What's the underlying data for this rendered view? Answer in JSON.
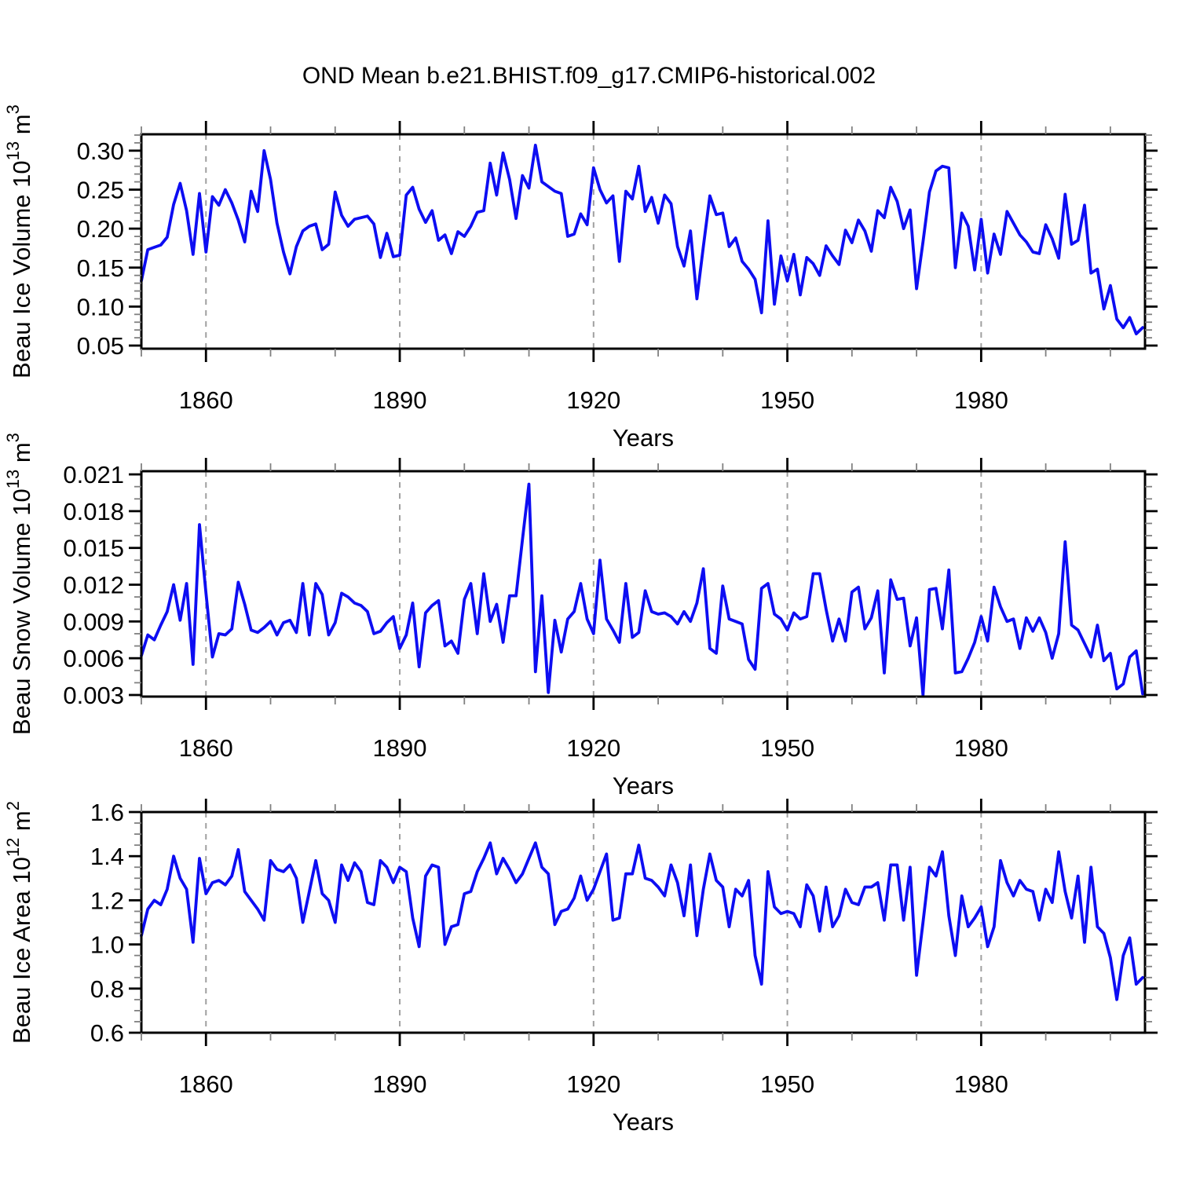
{
  "title": "OND Mean b.e21.BHIST.f09_g17.CMIP6-historical.002",
  "colors": {
    "line": "#0d0df2",
    "axis": "#000000",
    "major_tick": "#000000",
    "minor_tick": "#808080",
    "gridline": "#a0a0a0",
    "background": "#ffffff"
  },
  "x_axis": {
    "label": "Years",
    "start_year": 1850,
    "end_year": 2005,
    "major_ticks": [
      1860,
      1890,
      1920,
      1950,
      1980
    ],
    "minor_step": 10
  },
  "chart_data": [
    {
      "type": "line",
      "name": "beau-ice-volume",
      "ylabel": "Beau Ice Volume 10^13 m^3",
      "ylabel_parts": [
        {
          "text": "Beau Ice Volume 10",
          "sup": false
        },
        {
          "text": "13",
          "sup": true
        },
        {
          "text": " m",
          "sup": false
        },
        {
          "text": "3",
          "sup": true
        }
      ],
      "xlabel": "Years",
      "ylim": [
        0.046,
        0.321
      ],
      "yticks": [
        0.05,
        0.1,
        0.15,
        0.2,
        0.25,
        0.3
      ],
      "ytick_labels": [
        "0.05",
        "0.10",
        "0.15",
        "0.20",
        "0.25",
        "0.30"
      ],
      "y_minor_step": 0.01,
      "x_start": 1850,
      "values": [
        0.133,
        0.173,
        0.176,
        0.179,
        0.189,
        0.231,
        0.258,
        0.223,
        0.167,
        0.245,
        0.17,
        0.241,
        0.23,
        0.25,
        0.233,
        0.211,
        0.183,
        0.248,
        0.222,
        0.3,
        0.263,
        0.207,
        0.17,
        0.142,
        0.177,
        0.197,
        0.203,
        0.206,
        0.173,
        0.18,
        0.247,
        0.217,
        0.203,
        0.212,
        0.214,
        0.216,
        0.206,
        0.163,
        0.194,
        0.164,
        0.166,
        0.243,
        0.253,
        0.225,
        0.208,
        0.223,
        0.185,
        0.192,
        0.168,
        0.196,
        0.19,
        0.203,
        0.221,
        0.223,
        0.284,
        0.243,
        0.297,
        0.263,
        0.213,
        0.268,
        0.252,
        0.307,
        0.26,
        0.254,
        0.248,
        0.245,
        0.19,
        0.193,
        0.219,
        0.205,
        0.278,
        0.25,
        0.233,
        0.242,
        0.158,
        0.248,
        0.238,
        0.28,
        0.222,
        0.24,
        0.207,
        0.243,
        0.232,
        0.177,
        0.152,
        0.197,
        0.11,
        0.177,
        0.242,
        0.218,
        0.22,
        0.177,
        0.188,
        0.158,
        0.148,
        0.135,
        0.092,
        0.21,
        0.103,
        0.165,
        0.133,
        0.167,
        0.115,
        0.163,
        0.155,
        0.14,
        0.178,
        0.165,
        0.154,
        0.198,
        0.182,
        0.211,
        0.197,
        0.171,
        0.223,
        0.214,
        0.253,
        0.235,
        0.2,
        0.224,
        0.123,
        0.183,
        0.247,
        0.274,
        0.28,
        0.278,
        0.15,
        0.22,
        0.203,
        0.147,
        0.212,
        0.143,
        0.193,
        0.167,
        0.222,
        0.207,
        0.192,
        0.183,
        0.17,
        0.168,
        0.205,
        0.187,
        0.162,
        0.244,
        0.18,
        0.185,
        0.23,
        0.143,
        0.148,
        0.097,
        0.127,
        0.084,
        0.073,
        0.086,
        0.065,
        0.073
      ]
    },
    {
      "type": "line",
      "name": "beau-snow-volume",
      "ylabel": "Beau Snow Volume 10^13 m^3",
      "ylabel_parts": [
        {
          "text": "Beau Snow Volume 10",
          "sup": false
        },
        {
          "text": "13",
          "sup": true
        },
        {
          "text": " m",
          "sup": false
        },
        {
          "text": "3",
          "sup": true
        }
      ],
      "xlabel": "Years",
      "ylim": [
        0.00287,
        0.02126
      ],
      "yticks": [
        0.003,
        0.006,
        0.009,
        0.012,
        0.015,
        0.018,
        0.021
      ],
      "ytick_labels": [
        "0.003",
        "0.006",
        "0.009",
        "0.012",
        "0.015",
        "0.018",
        "0.021"
      ],
      "y_minor_step": 0.001,
      "x_start": 1850,
      "values": [
        0.0062,
        0.0079,
        0.0075,
        0.0087,
        0.0098,
        0.012,
        0.0091,
        0.0121,
        0.0055,
        0.0169,
        0.0113,
        0.0061,
        0.008,
        0.0079,
        0.0084,
        0.0122,
        0.0104,
        0.0083,
        0.0081,
        0.0085,
        0.009,
        0.0079,
        0.0089,
        0.0091,
        0.0081,
        0.0121,
        0.0079,
        0.0121,
        0.0112,
        0.0079,
        0.0089,
        0.0113,
        0.011,
        0.0105,
        0.0103,
        0.0098,
        0.008,
        0.0082,
        0.0089,
        0.0094,
        0.0068,
        0.0079,
        0.0105,
        0.0053,
        0.0097,
        0.0103,
        0.0107,
        0.007,
        0.0074,
        0.0064,
        0.0108,
        0.0121,
        0.008,
        0.0129,
        0.009,
        0.0104,
        0.0073,
        0.0111,
        0.0111,
        0.0157,
        0.0202,
        0.0049,
        0.0111,
        0.0032,
        0.0091,
        0.0065,
        0.0092,
        0.0098,
        0.0121,
        0.0092,
        0.008,
        0.014,
        0.0092,
        0.0083,
        0.0073,
        0.0121,
        0.0077,
        0.0081,
        0.0115,
        0.0098,
        0.0096,
        0.0097,
        0.0094,
        0.0088,
        0.0098,
        0.009,
        0.0105,
        0.0133,
        0.0068,
        0.0064,
        0.0119,
        0.0092,
        0.009,
        0.0088,
        0.0059,
        0.0051,
        0.0117,
        0.0121,
        0.0096,
        0.0092,
        0.0083,
        0.0097,
        0.0092,
        0.0094,
        0.0129,
        0.0129,
        0.01,
        0.0074,
        0.0092,
        0.0074,
        0.0114,
        0.0118,
        0.0084,
        0.0093,
        0.0115,
        0.0048,
        0.0124,
        0.0108,
        0.0109,
        0.007,
        0.0093,
        0.003,
        0.0116,
        0.0117,
        0.0084,
        0.0132,
        0.0048,
        0.0049,
        0.006,
        0.0073,
        0.0094,
        0.0074,
        0.0118,
        0.0102,
        0.009,
        0.0092,
        0.0068,
        0.0093,
        0.0082,
        0.0093,
        0.0081,
        0.006,
        0.008,
        0.0155,
        0.0087,
        0.0083,
        0.0072,
        0.0061,
        0.0087,
        0.0058,
        0.0064,
        0.0035,
        0.0039,
        0.0061,
        0.0066,
        0.0031
      ]
    },
    {
      "type": "line",
      "name": "beau-ice-area",
      "ylabel": "Beau Ice Area 10^12 m^2",
      "ylabel_parts": [
        {
          "text": "Beau Ice Area 10",
          "sup": false
        },
        {
          "text": "12",
          "sup": true
        },
        {
          "text": " m",
          "sup": false
        },
        {
          "text": "2",
          "sup": true
        }
      ],
      "xlabel": "Years",
      "ylim": [
        0.6,
        1.6
      ],
      "yticks": [
        0.6,
        0.8,
        1.0,
        1.2,
        1.4,
        1.6
      ],
      "ytick_labels": [
        "0.6",
        "0.8",
        "1.0",
        "1.2",
        "1.4",
        "1.6"
      ],
      "y_minor_step": 0.05,
      "x_start": 1850,
      "values": [
        1.04,
        1.16,
        1.2,
        1.18,
        1.25,
        1.4,
        1.3,
        1.25,
        1.01,
        1.39,
        1.23,
        1.28,
        1.29,
        1.27,
        1.31,
        1.43,
        1.24,
        1.2,
        1.16,
        1.11,
        1.38,
        1.34,
        1.33,
        1.36,
        1.3,
        1.1,
        1.24,
        1.38,
        1.23,
        1.2,
        1.1,
        1.36,
        1.29,
        1.37,
        1.33,
        1.19,
        1.18,
        1.38,
        1.35,
        1.28,
        1.35,
        1.33,
        1.12,
        0.99,
        1.31,
        1.36,
        1.35,
        1.0,
        1.08,
        1.09,
        1.23,
        1.24,
        1.33,
        1.39,
        1.46,
        1.32,
        1.39,
        1.34,
        1.28,
        1.32,
        1.39,
        1.46,
        1.35,
        1.32,
        1.09,
        1.15,
        1.16,
        1.21,
        1.31,
        1.2,
        1.25,
        1.33,
        1.41,
        1.11,
        1.12,
        1.32,
        1.32,
        1.45,
        1.3,
        1.29,
        1.26,
        1.22,
        1.36,
        1.28,
        1.13,
        1.36,
        1.04,
        1.25,
        1.41,
        1.29,
        1.26,
        1.08,
        1.25,
        1.22,
        1.29,
        0.95,
        0.82,
        1.33,
        1.17,
        1.14,
        1.15,
        1.14,
        1.08,
        1.27,
        1.22,
        1.06,
        1.26,
        1.08,
        1.13,
        1.25,
        1.19,
        1.18,
        1.26,
        1.26,
        1.28,
        1.11,
        1.36,
        1.36,
        1.11,
        1.35,
        0.86,
        1.1,
        1.35,
        1.31,
        1.42,
        1.13,
        0.95,
        1.22,
        1.08,
        1.12,
        1.17,
        0.99,
        1.08,
        1.38,
        1.28,
        1.22,
        1.29,
        1.25,
        1.24,
        1.11,
        1.25,
        1.19,
        1.42,
        1.24,
        1.12,
        1.31,
        1.01,
        1.35,
        1.08,
        1.05,
        0.94,
        0.75,
        0.95,
        1.03,
        0.82,
        0.85
      ]
    }
  ]
}
